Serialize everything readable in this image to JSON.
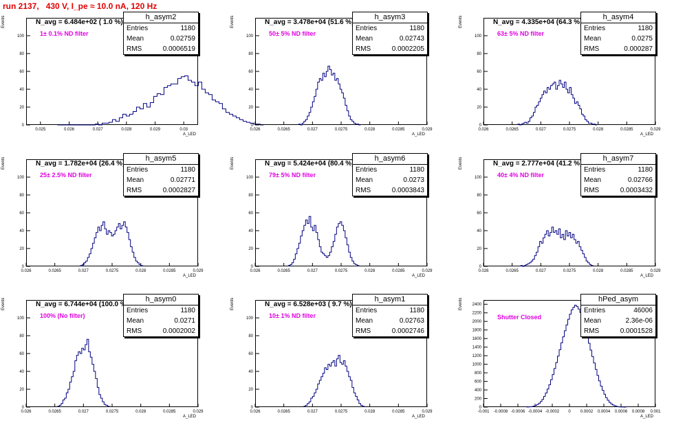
{
  "header": "run 2137,   430 V, I_pe ≈ 10.0 nA, 120 Hz",
  "colors": {
    "line": "#000080",
    "header": "#e00000",
    "filter": "#e000e0"
  },
  "common": {
    "ylabel": "Events",
    "xlabel": "A_LED"
  },
  "stats_labels": {
    "entries": "Entries",
    "mean": "Mean",
    "rms": "RMS"
  },
  "chart_data": [
    {
      "type": "bar",
      "name": "h_asym2",
      "navg": "N_avg = 6.484e+02 ( 1.0 %)",
      "filter": "1± 0.1% ND filter",
      "stats": {
        "entries": "1180",
        "mean": "0.02759",
        "rms": "0.0006519"
      },
      "xlim": [
        0.0245,
        0.0305
      ],
      "ylim": [
        0,
        120
      ],
      "xticks": [
        0.025,
        0.026,
        0.027,
        0.028,
        0.029,
        0.03
      ],
      "xticklabels": [
        "0.025",
        "0.026",
        "0.027",
        "0.028",
        "0.029",
        "0.03"
      ],
      "yticks": [
        0,
        20,
        40,
        60,
        80,
        100
      ],
      "yticklabels": [
        "0",
        "20",
        "40",
        "60",
        "80",
        "100"
      ],
      "bins": {
        "start": 0.02559,
        "width": 0.00012,
        "values": [
          0,
          0,
          0,
          0,
          0,
          0,
          0,
          0,
          0,
          0,
          0,
          1,
          0,
          2,
          2,
          3,
          6,
          4,
          8,
          12,
          10,
          12,
          15,
          20,
          18,
          24,
          20,
          25,
          32,
          35,
          34,
          42,
          44,
          46,
          46,
          52,
          54,
          55,
          50,
          48,
          44,
          48,
          40,
          36,
          34,
          28,
          26,
          24,
          18,
          14,
          12,
          10,
          8,
          6,
          4,
          3,
          2,
          1,
          1,
          0
        ]
      }
    },
    {
      "type": "bar",
      "name": "h_asym3",
      "navg": "N_avg = 3.478e+04 (51.6 %)",
      "filter": "50± 5% ND filter",
      "stats": {
        "entries": "1180",
        "mean": "0.02743",
        "rms": "0.0002205"
      },
      "xlim": [
        0.026,
        0.029
      ],
      "ylim": [
        0,
        120
      ],
      "xticks": [
        0.026,
        0.0265,
        0.027,
        0.0275,
        0.028,
        0.0285,
        0.029
      ],
      "xticklabels": [
        "0.026",
        "0.0265",
        "0.027",
        "0.0275",
        "0.028",
        "0.0285",
        "0.029"
      ],
      "yticks": [
        0,
        20,
        40,
        60,
        80,
        100
      ],
      "yticklabels": [
        "0",
        "20",
        "40",
        "60",
        "80",
        "100"
      ],
      "bins": {
        "start": 0.02676,
        "width": 3e-05,
        "values": [
          1,
          0,
          2,
          4,
          6,
          10,
          14,
          20,
          26,
          32,
          40,
          48,
          52,
          50,
          58,
          54,
          60,
          66,
          62,
          56,
          58,
          50,
          52,
          46,
          40,
          36,
          30,
          22,
          16,
          10,
          6,
          4,
          2,
          1,
          1,
          0
        ]
      }
    },
    {
      "type": "bar",
      "name": "h_asym4",
      "navg": "N_avg = 4.335e+04 (64.3 %)",
      "filter": "63± 5% ND filter",
      "stats": {
        "entries": "1180",
        "mean": "0.0275",
        "rms": "0.000287"
      },
      "xlim": [
        0.026,
        0.029
      ],
      "ylim": [
        0,
        120
      ],
      "xticks": [
        0.026,
        0.0265,
        0.027,
        0.0275,
        0.028,
        0.0285,
        0.029
      ],
      "xticklabels": [
        "0.026",
        "0.0265",
        "0.027",
        "0.0275",
        "0.028",
        "0.0285",
        "0.029"
      ],
      "yticks": [
        0,
        20,
        40,
        60,
        80,
        100
      ],
      "yticklabels": [
        "0",
        "20",
        "40",
        "60",
        "80",
        "100"
      ],
      "bins": {
        "start": 0.0266,
        "width": 3e-05,
        "values": [
          1,
          0,
          1,
          2,
          3,
          2,
          4,
          8,
          10,
          14,
          20,
          22,
          26,
          30,
          34,
          38,
          36,
          42,
          40,
          44,
          46,
          48,
          40,
          44,
          50,
          46,
          42,
          48,
          40,
          36,
          42,
          34,
          30,
          24,
          26,
          22,
          18,
          12,
          10,
          6,
          4,
          2,
          2,
          1,
          1,
          0
        ]
      }
    },
    {
      "type": "bar",
      "name": "h_asym5",
      "navg": "N_avg = 1.782e+04 (26.4 %)",
      "filter": "25± 2.5% ND filter",
      "stats": {
        "entries": "1180",
        "mean": "0.02771",
        "rms": "0.0002827"
      },
      "xlim": [
        0.026,
        0.029
      ],
      "ylim": [
        0,
        120
      ],
      "xticks": [
        0.026,
        0.0265,
        0.027,
        0.0275,
        0.028,
        0.0285,
        0.029
      ],
      "xticklabels": [
        "0.026",
        "0.0265",
        "0.027",
        "0.0275",
        "0.028",
        "0.0285",
        "0.029"
      ],
      "yticks": [
        0,
        20,
        40,
        60,
        80,
        100
      ],
      "yticklabels": [
        "0",
        "20",
        "40",
        "60",
        "80",
        "100"
      ],
      "bins": {
        "start": 0.02695,
        "width": 3e-05,
        "values": [
          1,
          2,
          4,
          6,
          10,
          14,
          20,
          26,
          32,
          38,
          44,
          40,
          46,
          50,
          42,
          36,
          40,
          38,
          34,
          36,
          40,
          44,
          48,
          42,
          46,
          50,
          44,
          38,
          30,
          22,
          16,
          10,
          6,
          4,
          2,
          1
        ]
      }
    },
    {
      "type": "bar",
      "name": "h_asym6",
      "navg": "N_avg = 5.424e+04 (80.4 %)",
      "filter": "79± 5% ND filter",
      "stats": {
        "entries": "1180",
        "mean": "0.0273",
        "rms": "0.0003843"
      },
      "xlim": [
        0.026,
        0.029
      ],
      "ylim": [
        0,
        120
      ],
      "xticks": [
        0.026,
        0.0265,
        0.027,
        0.0275,
        0.028,
        0.0285,
        0.029
      ],
      "xticklabels": [
        "0.026",
        "0.0265",
        "0.027",
        "0.0275",
        "0.028",
        "0.0285",
        "0.029"
      ],
      "yticks": [
        0,
        20,
        40,
        60,
        80,
        100
      ],
      "yticklabels": [
        "0",
        "20",
        "40",
        "60",
        "80",
        "100"
      ],
      "bins": {
        "start": 0.02658,
        "width": 3e-05,
        "values": [
          1,
          2,
          4,
          8,
          14,
          20,
          26,
          34,
          40,
          46,
          52,
          48,
          56,
          44,
          40,
          46,
          38,
          30,
          22,
          16,
          14,
          12,
          10,
          12,
          16,
          22,
          28,
          36,
          44,
          48,
          50,
          46,
          40,
          32,
          24,
          16,
          10,
          6,
          3,
          2,
          1
        ]
      }
    },
    {
      "type": "bar",
      "name": "h_asym7",
      "navg": "N_avg = 2.777e+04 (41.2 %)",
      "filter": "40± 4% ND filter",
      "stats": {
        "entries": "1180",
        "mean": "0.02766",
        "rms": "0.0003432"
      },
      "xlim": [
        0.026,
        0.029
      ],
      "ylim": [
        0,
        120
      ],
      "xticks": [
        0.026,
        0.0265,
        0.027,
        0.0275,
        0.028,
        0.0285,
        0.029
      ],
      "xticklabels": [
        "0.026",
        "0.0265",
        "0.027",
        "0.0275",
        "0.028",
        "0.0285",
        "0.029"
      ],
      "yticks": [
        0,
        20,
        40,
        60,
        80,
        100
      ],
      "yticklabels": [
        "0",
        "20",
        "40",
        "60",
        "80",
        "100"
      ],
      "bins": {
        "start": 0.02665,
        "width": 3e-05,
        "values": [
          1,
          0,
          1,
          2,
          3,
          4,
          6,
          8,
          12,
          16,
          22,
          28,
          26,
          32,
          36,
          40,
          34,
          38,
          44,
          38,
          40,
          36,
          42,
          32,
          36,
          30,
          40,
          34,
          38,
          32,
          36,
          30,
          26,
          28,
          22,
          18,
          14,
          10,
          6,
          4,
          2,
          1
        ]
      }
    },
    {
      "type": "bar",
      "name": "h_asym0",
      "navg": "N_avg = 6.744e+04 (100.0 %)",
      "filter": "100% (No filter)",
      "stats": {
        "entries": "1180",
        "mean": "0.0271",
        "rms": "0.0002002"
      },
      "xlim": [
        0.026,
        0.029
      ],
      "ylim": [
        0,
        120
      ],
      "xticks": [
        0.026,
        0.0265,
        0.027,
        0.0275,
        0.028,
        0.0285,
        0.029
      ],
      "xticklabels": [
        "0.026",
        "0.0265",
        "0.027",
        "0.0275",
        "0.028",
        "0.0285",
        "0.029"
      ],
      "yticks": [
        0,
        20,
        40,
        60,
        80,
        100
      ],
      "yticklabels": [
        "0",
        "20",
        "40",
        "60",
        "80",
        "100"
      ],
      "bins": {
        "start": 0.02655,
        "width": 3e-05,
        "values": [
          1,
          2,
          4,
          8,
          10,
          16,
          20,
          28,
          34,
          40,
          52,
          58,
          62,
          60,
          66,
          64,
          70,
          76,
          62,
          56,
          48,
          40,
          32,
          22,
          14,
          10,
          6,
          3,
          2,
          1
        ]
      }
    },
    {
      "type": "bar",
      "name": "h_asym1",
      "navg": "N_avg = 6.528e+03 ( 9.7 %)",
      "filter": "10± 1% ND filter",
      "stats": {
        "entries": "1180",
        "mean": "0.02763",
        "rms": "0.0002746"
      },
      "xlim": [
        0.026,
        0.029
      ],
      "ylim": [
        0,
        120
      ],
      "xticks": [
        0.026,
        0.0265,
        0.027,
        0.0275,
        0.028,
        0.0285,
        0.029
      ],
      "xticklabels": [
        "0.026",
        "0.0265",
        "0.027",
        "0.0275",
        "0.028",
        "0.0285",
        "0.029"
      ],
      "yticks": [
        0,
        20,
        40,
        60,
        80,
        100
      ],
      "yticklabels": [
        "0",
        "20",
        "40",
        "60",
        "80",
        "100"
      ],
      "bins": {
        "start": 0.02685,
        "width": 3e-05,
        "values": [
          1,
          2,
          4,
          6,
          10,
          12,
          16,
          20,
          26,
          30,
          34,
          38,
          44,
          42,
          48,
          46,
          50,
          52,
          46,
          54,
          58,
          50,
          48,
          52,
          46,
          40,
          34,
          30,
          22,
          16,
          12,
          8,
          4,
          2,
          1
        ]
      }
    },
    {
      "type": "bar",
      "name": "hPed_asym",
      "filter": "Shutter Closed",
      "stats": {
        "entries": "46006",
        "mean": "2.36e-06",
        "rms": "0.0001528"
      },
      "xlim": [
        -0.001,
        0.001
      ],
      "ylim": [
        0,
        2500
      ],
      "xticks": [
        -0.001,
        -0.0008,
        -0.0006,
        -0.0004,
        -0.0002,
        0,
        0.0002,
        0.0004,
        0.0006,
        0.0008,
        0.001
      ],
      "xticklabels": [
        "-0.001",
        "-0.0008",
        "-0.0006",
        "-0.0004",
        "-0.0002",
        "0",
        "0.0002",
        "0.0004",
        "0.0006",
        "0.0008",
        "0.001"
      ],
      "yticks": [
        0,
        200,
        400,
        600,
        800,
        1000,
        1200,
        1400,
        1600,
        1800,
        2000,
        2200,
        2400
      ],
      "yticklabels": [
        "0",
        "200",
        "400",
        "600",
        "800",
        "1000",
        "1200",
        "1400",
        "1600",
        "1800",
        "2000",
        "2200",
        "2400"
      ],
      "bins": {
        "start": -0.0005,
        "width": 2e-05,
        "values": [
          2,
          4,
          8,
          14,
          24,
          40,
          60,
          90,
          130,
          180,
          250,
          330,
          420,
          520,
          640,
          760,
          900,
          1040,
          1190,
          1340,
          1500,
          1640,
          1780,
          1920,
          2050,
          2170,
          2270,
          2330,
          2380,
          2350,
          2290,
          2210,
          2080,
          1950,
          1800,
          1650,
          1490,
          1330,
          1180,
          1030,
          880,
          740,
          610,
          490,
          390,
          300,
          220,
          160,
          110,
          75,
          50,
          30,
          18,
          10,
          5,
          3,
          2,
          1
        ]
      }
    }
  ]
}
